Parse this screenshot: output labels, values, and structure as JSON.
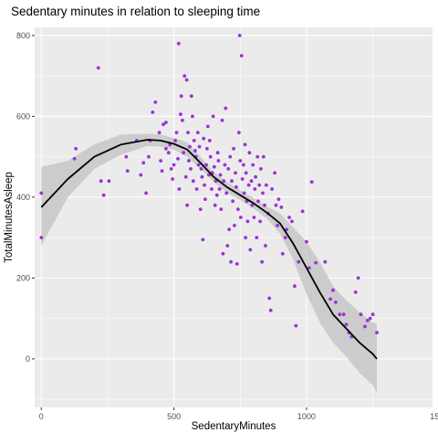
{
  "chart_data": {
    "type": "scatter",
    "title": "Sedentary minutes in relation to sleeping time",
    "xlabel": "SedentaryMinutes",
    "ylabel": "TotalMinutesAsleep",
    "xlim": [
      -25,
      1475
    ],
    "ylim": [
      -120,
      820
    ],
    "x_ticks": [
      0,
      500,
      1000,
      1500
    ],
    "y_ticks": [
      0,
      200,
      400,
      600,
      800
    ],
    "grid": true,
    "legend": "none",
    "colors": {
      "point": "#9B30D9",
      "smooth_line": "#000000",
      "ribbon": "#C9C9C9",
      "panel": "#EBEBEB",
      "grid": "#FFFFFF"
    },
    "series": [
      {
        "points": [
          [
            0,
            410
          ],
          [
            0,
            300
          ],
          [
            130,
            520
          ],
          [
            125,
            495
          ],
          [
            215,
            720
          ],
          [
            225,
            440
          ],
          [
            235,
            405
          ],
          [
            255,
            440
          ],
          [
            320,
            500
          ],
          [
            325,
            465
          ],
          [
            360,
            540
          ],
          [
            375,
            455
          ],
          [
            385,
            485
          ],
          [
            395,
            410
          ],
          [
            405,
            500
          ],
          [
            410,
            540
          ],
          [
            420,
            610
          ],
          [
            430,
            635
          ],
          [
            445,
            560
          ],
          [
            450,
            490
          ],
          [
            455,
            465
          ],
          [
            460,
            580
          ],
          [
            470,
            520
          ],
          [
            470,
            585
          ],
          [
            480,
            510
          ],
          [
            485,
            530
          ],
          [
            490,
            470
          ],
          [
            495,
            445
          ],
          [
            500,
            480
          ],
          [
            505,
            540
          ],
          [
            510,
            560
          ],
          [
            515,
            495
          ],
          [
            518,
            780
          ],
          [
            520,
            420
          ],
          [
            525,
            605
          ],
          [
            528,
            650
          ],
          [
            532,
            590
          ],
          [
            536,
            510
          ],
          [
            540,
            700
          ],
          [
            545,
            450
          ],
          [
            548,
            690
          ],
          [
            550,
            380
          ],
          [
            553,
            560
          ],
          [
            556,
            490
          ],
          [
            560,
            525
          ],
          [
            563,
            470
          ],
          [
            566,
            650
          ],
          [
            570,
            600
          ],
          [
            573,
            440
          ],
          [
            576,
            540
          ],
          [
            580,
            515
          ],
          [
            583,
            500
          ],
          [
            586,
            420
          ],
          [
            590,
            560
          ],
          [
            593,
            480
          ],
          [
            596,
            525
          ],
          [
            600,
            370
          ],
          [
            603,
            470
          ],
          [
            606,
            450
          ],
          [
            609,
            295
          ],
          [
            612,
            545
          ],
          [
            615,
            430
          ],
          [
            618,
            395
          ],
          [
            622,
            480
          ],
          [
            625,
            520
          ],
          [
            628,
            575
          ],
          [
            632,
            455
          ],
          [
            635,
            540
          ],
          [
            638,
            500
          ],
          [
            642,
            420
          ],
          [
            645,
            460
          ],
          [
            648,
            600
          ],
          [
            652,
            475
          ],
          [
            655,
            380
          ],
          [
            658,
            440
          ],
          [
            662,
            405
          ],
          [
            665,
            510
          ],
          [
            668,
            490
          ],
          [
            672,
            420
          ],
          [
            675,
            455
          ],
          [
            678,
            370
          ],
          [
            682,
            590
          ],
          [
            685,
            260
          ],
          [
            688,
            440
          ],
          [
            692,
            480
          ],
          [
            695,
            620
          ],
          [
            698,
            410
          ],
          [
            702,
            280
          ],
          [
            705,
            470
          ],
          [
            708,
            320
          ],
          [
            712,
            500
          ],
          [
            715,
            240
          ],
          [
            718,
            440
          ],
          [
            722,
            390
          ],
          [
            725,
            520
          ],
          [
            728,
            330
          ],
          [
            732,
            460
          ],
          [
            735,
            425
          ],
          [
            738,
            235
          ],
          [
            742,
            370
          ],
          [
            745,
            560
          ],
          [
            748,
            800
          ],
          [
            750,
            490
          ],
          [
            752,
            350
          ],
          [
            755,
            750
          ],
          [
            758,
            445
          ],
          [
            762,
            480
          ],
          [
            765,
            410
          ],
          [
            768,
            530
          ],
          [
            770,
            300
          ],
          [
            772,
            460
          ],
          [
            775,
            390
          ],
          [
            778,
            340
          ],
          [
            782,
            430
          ],
          [
            785,
            510
          ],
          [
            788,
            270
          ],
          [
            792,
            440
          ],
          [
            795,
            380
          ],
          [
            798,
            480
          ],
          [
            802,
            350
          ],
          [
            805,
            420
          ],
          [
            808,
            450
          ],
          [
            812,
            300
          ],
          [
            815,
            500
          ],
          [
            818,
            390
          ],
          [
            822,
            430
          ],
          [
            825,
            340
          ],
          [
            828,
            470
          ],
          [
            832,
            240
          ],
          [
            835,
            410
          ],
          [
            838,
            500
          ],
          [
            842,
            380
          ],
          [
            845,
            280
          ],
          [
            848,
            430
          ],
          [
            855,
            360
          ],
          [
            860,
            150
          ],
          [
            865,
            120
          ],
          [
            870,
            420
          ],
          [
            880,
            460
          ],
          [
            885,
            380
          ],
          [
            890,
            330
          ],
          [
            895,
            395
          ],
          [
            905,
            375
          ],
          [
            910,
            260
          ],
          [
            920,
            300
          ],
          [
            925,
            320
          ],
          [
            935,
            350
          ],
          [
            945,
            340
          ],
          [
            955,
            180
          ],
          [
            960,
            82
          ],
          [
            970,
            240
          ],
          [
            985,
            365
          ],
          [
            1000,
            290
          ],
          [
            1010,
            225
          ],
          [
            1020,
            438
          ],
          [
            1035,
            238
          ],
          [
            1070,
            240
          ],
          [
            1090,
            148
          ],
          [
            1100,
            170
          ],
          [
            1110,
            140
          ],
          [
            1125,
            110
          ],
          [
            1140,
            110
          ],
          [
            1150,
            85
          ],
          [
            1160,
            65
          ],
          [
            1170,
            55
          ],
          [
            1185,
            165
          ],
          [
            1195,
            200
          ],
          [
            1205,
            110
          ],
          [
            1220,
            80
          ],
          [
            1230,
            95
          ],
          [
            1240,
            100
          ],
          [
            1250,
            110
          ],
          [
            1265,
            65
          ]
        ]
      }
    ],
    "smooth": {
      "x": [
        0,
        100,
        200,
        300,
        400,
        450,
        500,
        550,
        600,
        650,
        700,
        750,
        800,
        850,
        900,
        950,
        1000,
        1050,
        1100,
        1150,
        1200,
        1250,
        1265
      ],
      "y": [
        375,
        445,
        500,
        530,
        542,
        540,
        532,
        518,
        485,
        450,
        425,
        405,
        385,
        362,
        335,
        285,
        225,
        165,
        110,
        75,
        40,
        12,
        0
      ],
      "lower": [
        280,
        400,
        470,
        505,
        527,
        525,
        518,
        500,
        470,
        438,
        412,
        393,
        372,
        347,
        310,
        245,
        160,
        90,
        40,
        5,
        -35,
        -65,
        -85
      ],
      "upper": [
        475,
        490,
        530,
        555,
        557,
        555,
        546,
        536,
        500,
        462,
        438,
        417,
        398,
        377,
        360,
        325,
        290,
        240,
        180,
        145,
        115,
        90,
        85
      ]
    }
  }
}
